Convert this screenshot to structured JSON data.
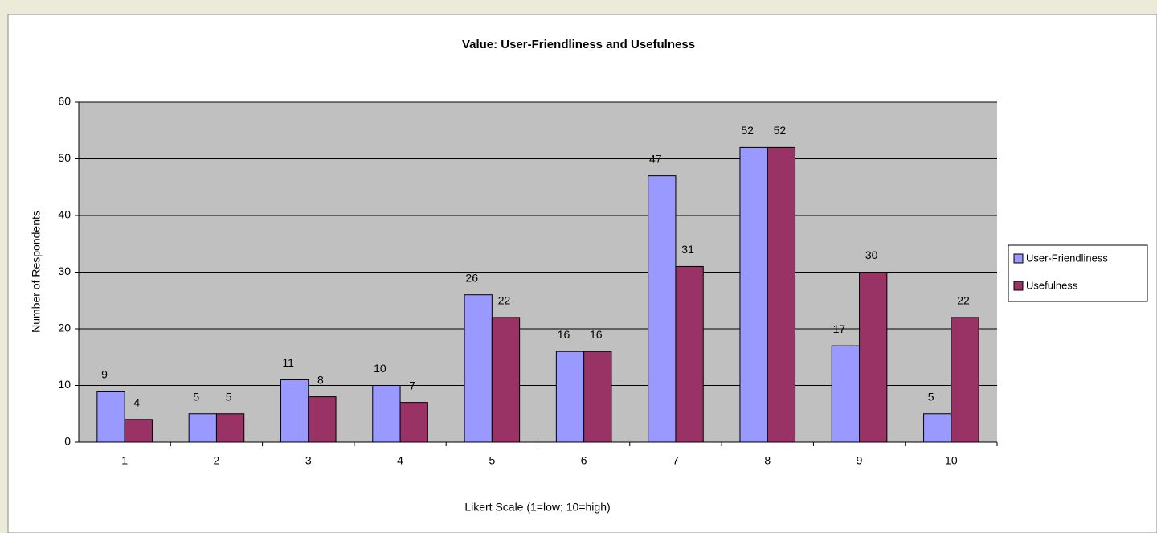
{
  "chart_data": {
    "type": "bar",
    "title": "Value: User-Friendliness and Usefulness",
    "x_label": "Likert Scale (1=low; 10=high)",
    "y_label": "Number of Respondents",
    "categories": [
      "1",
      "2",
      "3",
      "4",
      "5",
      "6",
      "7",
      "8",
      "9",
      "10"
    ],
    "series": [
      {
        "name": "User-Friendliness",
        "color": "#9999ff",
        "values": [
          9,
          5,
          11,
          10,
          26,
          16,
          47,
          52,
          17,
          5
        ]
      },
      {
        "name": "Usefulness",
        "color": "#993366",
        "values": [
          4,
          5,
          8,
          7,
          22,
          16,
          31,
          52,
          30,
          22
        ]
      }
    ],
    "ylim": [
      0,
      60
    ],
    "yticks": [
      0,
      10,
      20,
      30,
      40,
      50,
      60
    ],
    "grid": true,
    "legend": "right"
  }
}
